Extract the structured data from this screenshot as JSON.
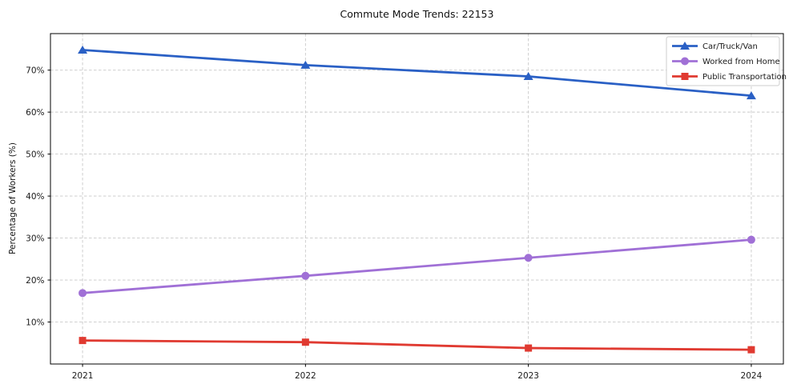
{
  "chart_data": {
    "type": "line",
    "title": "Commute Mode Trends: 22153",
    "xlabel": "",
    "ylabel": "Percentage of Workers (%)",
    "x": [
      2021,
      2022,
      2023,
      2024
    ],
    "x_tick_labels": [
      "2021",
      "2022",
      "2023",
      "2024"
    ],
    "y_ticks": [
      10,
      20,
      30,
      40,
      50,
      60,
      70
    ],
    "y_tick_labels": [
      "10%",
      "20%",
      "30%",
      "40%",
      "50%",
      "60%",
      "70%"
    ],
    "xlim": [
      2020.856,
      2024.144
    ],
    "ylim": [
      0,
      78.7
    ],
    "grid": "dashed",
    "legend_position": "top-right",
    "series": [
      {
        "name": "Car/Truck/Van",
        "color": "#2a60c5",
        "marker": "triangle",
        "values": [
          74.8,
          71.2,
          68.5,
          63.9
        ]
      },
      {
        "name": "Worked from Home",
        "color": "#a070d6",
        "marker": "circle",
        "values": [
          16.9,
          21.0,
          25.3,
          29.6
        ]
      },
      {
        "name": "Public Transportation",
        "color": "#e03a31",
        "marker": "square",
        "values": [
          5.6,
          5.2,
          3.8,
          3.4
        ]
      }
    ]
  },
  "colors": {
    "background": "#ffffff",
    "axis": "#000000",
    "grid": "#c9c9c9",
    "tick_label": "#1a1a1a",
    "legend_border": "#cccccc",
    "legend_background": "#ffffff"
  }
}
